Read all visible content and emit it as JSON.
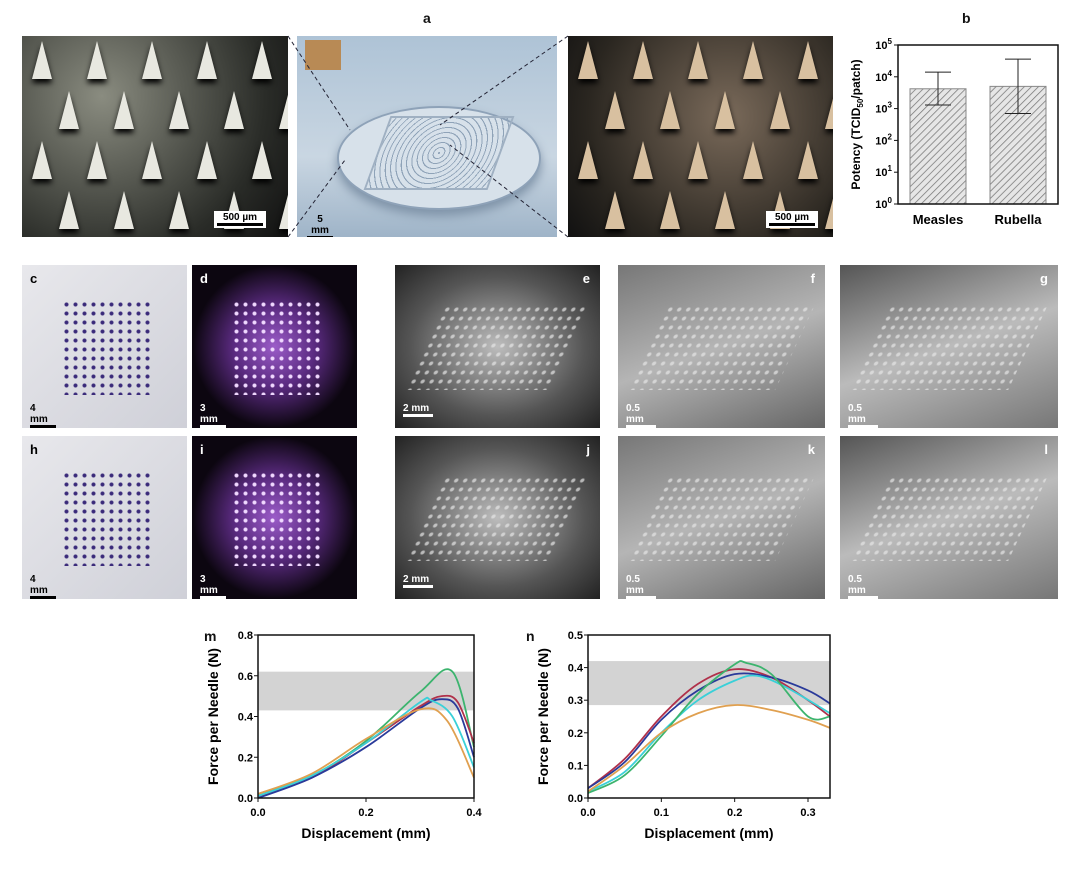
{
  "panel_labels": {
    "a": "a",
    "b": "b",
    "c": "c",
    "d": "d",
    "e": "e",
    "f": "f",
    "g": "g",
    "h": "h",
    "i": "i",
    "j": "j",
    "k": "k",
    "l": "l",
    "m": "m",
    "n": "n"
  },
  "scale_bars": {
    "a1": "500 µm",
    "a2": "5 mm",
    "a3": "500 µm",
    "c": "4 mm",
    "d": "3 mm",
    "e": "2 mm",
    "f": "0.5 mm",
    "g": "0.5 mm",
    "h": "4 mm",
    "i": "3 mm",
    "j": "2 mm",
    "k": "0.5 mm",
    "l": "0.5 mm"
  },
  "chart_data": [
    {
      "id": "b",
      "type": "bar",
      "categories": [
        "Measles",
        "Rubella"
      ],
      "values": [
        4200,
        5000
      ],
      "error_low": [
        1300,
        700
      ],
      "error_high": [
        14000,
        36000
      ],
      "ylabel": "Potency (TCID50/patch)",
      "yscale": "log",
      "ylim": [
        1,
        100000
      ],
      "yticks": [
        "10^0",
        "10^1",
        "10^2",
        "10^3",
        "10^4",
        "10^5"
      ],
      "bar_fill": "hatched grey"
    },
    {
      "id": "m",
      "type": "line",
      "xlabel": "Displacement (mm)",
      "ylabel": "Force per Needle (N)",
      "xlim": [
        0,
        0.4
      ],
      "ylim": [
        0,
        0.8
      ],
      "xticks": [
        "0.0",
        "0.2",
        "0.4"
      ],
      "yticks": [
        "0.0",
        "0.2",
        "0.4",
        "0.6",
        "0.8"
      ],
      "shaded_band": [
        0.43,
        0.62
      ],
      "series": [
        {
          "color": "#3cb46e",
          "points": [
            [
              0,
              0.02
            ],
            [
              0.1,
              0.11
            ],
            [
              0.2,
              0.28
            ],
            [
              0.3,
              0.52
            ],
            [
              0.36,
              0.62
            ],
            [
              0.4,
              0.25
            ]
          ]
        },
        {
          "color": "#b0304a",
          "points": [
            [
              0,
              0.01
            ],
            [
              0.1,
              0.1
            ],
            [
              0.2,
              0.27
            ],
            [
              0.3,
              0.45
            ],
            [
              0.34,
              0.5
            ],
            [
              0.37,
              0.47
            ],
            [
              0.4,
              0.27
            ]
          ]
        },
        {
          "color": "#2a3a9a",
          "points": [
            [
              0,
              0.0
            ],
            [
              0.1,
              0.1
            ],
            [
              0.2,
              0.25
            ],
            [
              0.3,
              0.44
            ],
            [
              0.34,
              0.485
            ],
            [
              0.37,
              0.44
            ],
            [
              0.4,
              0.2
            ]
          ]
        },
        {
          "color": "#3ad0d8",
          "points": [
            [
              0,
              0.01
            ],
            [
              0.1,
              0.11
            ],
            [
              0.2,
              0.27
            ],
            [
              0.3,
              0.47
            ],
            [
              0.32,
              0.48
            ],
            [
              0.36,
              0.4
            ],
            [
              0.4,
              0.15
            ]
          ]
        },
        {
          "color": "#e0a050",
          "points": [
            [
              0,
              0.02
            ],
            [
              0.1,
              0.12
            ],
            [
              0.2,
              0.29
            ],
            [
              0.3,
              0.435
            ],
            [
              0.35,
              0.38
            ],
            [
              0.4,
              0.1
            ]
          ]
        }
      ]
    },
    {
      "id": "n",
      "type": "line",
      "xlabel": "Displacement (mm)",
      "ylabel": "Force per Needle (N)",
      "xlim": [
        0,
        0.33
      ],
      "ylim": [
        0,
        0.5
      ],
      "xticks": [
        "0.0",
        "0.1",
        "0.2",
        "0.3"
      ],
      "yticks": [
        "0.0",
        "0.1",
        "0.2",
        "0.3",
        "0.4",
        "0.5"
      ],
      "shaded_band": [
        0.285,
        0.42
      ],
      "series": [
        {
          "color": "#b0304a",
          "points": [
            [
              0,
              0.03
            ],
            [
              0.05,
              0.12
            ],
            [
              0.1,
              0.25
            ],
            [
              0.15,
              0.35
            ],
            [
              0.2,
              0.395
            ],
            [
              0.25,
              0.37
            ],
            [
              0.3,
              0.3
            ],
            [
              0.33,
              0.25
            ]
          ]
        },
        {
          "color": "#2a3a9a",
          "points": [
            [
              0,
              0.03
            ],
            [
              0.05,
              0.11
            ],
            [
              0.1,
              0.24
            ],
            [
              0.15,
              0.33
            ],
            [
              0.2,
              0.38
            ],
            [
              0.25,
              0.37
            ],
            [
              0.3,
              0.33
            ],
            [
              0.33,
              0.29
            ]
          ]
        },
        {
          "color": "#3ad0d8",
          "points": [
            [
              0,
              0.02
            ],
            [
              0.05,
              0.08
            ],
            [
              0.1,
              0.2
            ],
            [
              0.15,
              0.3
            ],
            [
              0.2,
              0.36
            ],
            [
              0.23,
              0.375
            ],
            [
              0.27,
              0.34
            ],
            [
              0.33,
              0.26
            ]
          ]
        },
        {
          "color": "#3cb46e",
          "points": [
            [
              0,
              0.015
            ],
            [
              0.05,
              0.07
            ],
            [
              0.1,
              0.19
            ],
            [
              0.15,
              0.32
            ],
            [
              0.2,
              0.41
            ],
            [
              0.215,
              0.415
            ],
            [
              0.25,
              0.38
            ],
            [
              0.3,
              0.25
            ],
            [
              0.33,
              0.25
            ]
          ]
        },
        {
          "color": "#e0a050",
          "points": [
            [
              0,
              0.02
            ],
            [
              0.05,
              0.1
            ],
            [
              0.1,
              0.2
            ],
            [
              0.15,
              0.26
            ],
            [
              0.2,
              0.285
            ],
            [
              0.25,
              0.27
            ],
            [
              0.3,
              0.24
            ],
            [
              0.33,
              0.215
            ]
          ]
        }
      ]
    }
  ]
}
